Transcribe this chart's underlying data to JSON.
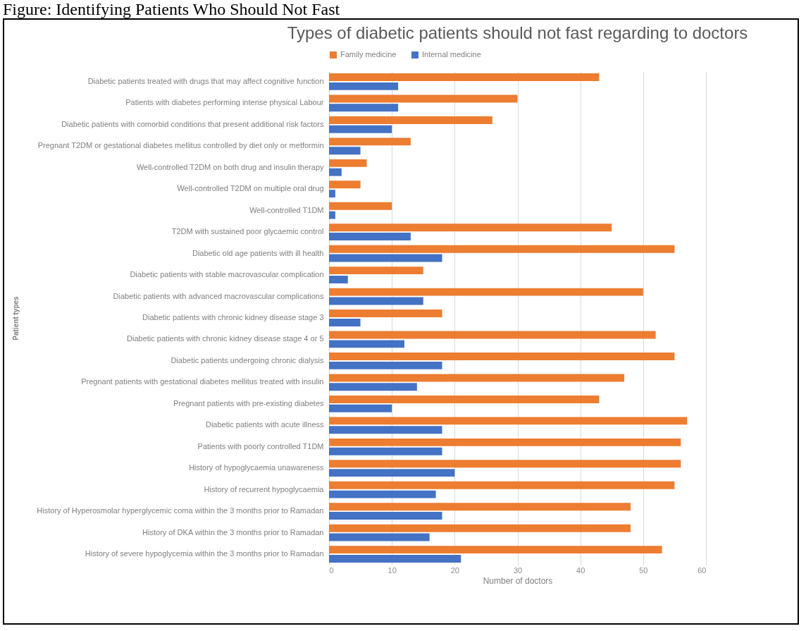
{
  "chart_data": {
    "type": "bar",
    "orientation": "horizontal",
    "title": "Types of diabetic patients should not fast regarding to doctors",
    "xlabel": "Number of doctors",
    "ylabel": "Patient types",
    "annotations": [
      "Figure: Identifying Patients Who Should Not Fast"
    ],
    "categories": [
      "Diabetic patients treated with drugs that may affect cognitive function",
      "Patients with diabetes performing intense physical Labour",
      "Diabetic patients with comorbid conditions that present additional risk factors",
      "Pregnant T2DM or gestational diabetes mellitus controlled by diet only or metformin",
      "Well-controlled T2DM on both drug and insulin therapy",
      "Well-controlled T2DM on multiple oral drug",
      "Well-controlled T1DM",
      "T2DM with sustained poor glycaemic control",
      "Diabetic old age patients with ill health",
      "Diabetic patients with stable macrovascular complication",
      "Diabetic patients with advanced macrovascular complications",
      "Diabetic patients with chronic kidney disease stage 3",
      "Diabetic patients with chronic kidney disease stage 4 or 5",
      "Diabetic patients undergoing chronic dialysis",
      "Pregnant patients with gestational diabetes mellitus treated with insulin",
      "Pregnant patients with pre-existing diabetes",
      "Diabetic patients with acute illness",
      "Patients with poorly controlled T1DM",
      "History of hypoglycaemia unawareness",
      "History of recurrent hypoglycaemia",
      "History of Hyperosmolar hyperglycemic coma within the 3 months prior to Ramadan",
      "History of DKA within the 3 months prior to Ramadan",
      "History of severe hypoglycemia within the 3 months prior to Ramadan"
    ],
    "series": [
      {
        "name": "Family medicine",
        "color": "#ed7d31",
        "values": [
          43,
          30,
          26,
          13,
          6,
          5,
          10,
          45,
          55,
          15,
          50,
          18,
          52,
          55,
          47,
          43,
          57,
          56,
          56,
          55,
          48,
          48,
          53
        ]
      },
      {
        "name": "Internal medicine",
        "color": "#4472c4",
        "values": [
          11,
          11,
          10,
          5,
          2,
          1,
          1,
          13,
          18,
          3,
          15,
          5,
          12,
          18,
          14,
          10,
          18,
          18,
          20,
          17,
          18,
          16,
          21
        ]
      }
    ],
    "xlim": [
      0,
      60
    ],
    "xticks": [
      0,
      10,
      20,
      30,
      40,
      50,
      60
    ],
    "grid": "x",
    "legend": "top"
  }
}
